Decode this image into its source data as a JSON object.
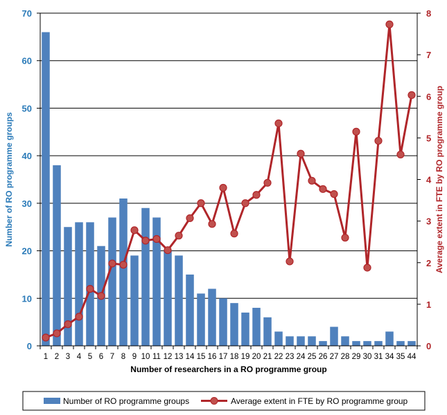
{
  "chart_data": {
    "type": "bar",
    "categories": [
      "1",
      "2",
      "3",
      "4",
      "5",
      "6",
      "7",
      "8",
      "9",
      "10",
      "11",
      "12",
      "13",
      "14",
      "15",
      "16",
      "17",
      "18",
      "19",
      "20",
      "21",
      "22",
      "23",
      "24",
      "25",
      "26",
      "27",
      "28",
      "29",
      "30",
      "31",
      "34",
      "35",
      "44"
    ],
    "series": [
      {
        "name": "Number of RO programme groups",
        "type": "bar",
        "axis": "left",
        "color": "#4f81bd",
        "values": [
          66,
          38,
          25,
          26,
          26,
          21,
          27,
          31,
          19,
          29,
          27,
          20,
          19,
          15,
          11,
          12,
          10,
          9,
          7,
          8,
          6,
          3,
          2,
          2,
          2,
          1,
          4,
          2,
          1,
          1,
          1,
          3,
          1,
          1
        ]
      },
      {
        "name": "Average extent in FTE by RO programme group",
        "type": "line",
        "axis": "right",
        "color": "#c0504d",
        "line_color": "#b0262a",
        "values": [
          0.2,
          0.3,
          0.52,
          0.7,
          1.37,
          1.2,
          1.98,
          1.95,
          2.78,
          2.53,
          2.57,
          2.3,
          2.65,
          3.07,
          3.43,
          2.93,
          3.8,
          2.7,
          3.43,
          3.63,
          3.92,
          5.35,
          2.03,
          4.62,
          3.97,
          3.77,
          3.65,
          2.6,
          5.15,
          1.88,
          4.93,
          7.73,
          4.6,
          6.03
        ]
      }
    ],
    "xlabel": "Number of researchers in a RO programme group",
    "ylabel": "Number of RO programme groups",
    "y2label": "Average extent in FTE by RO programme group",
    "ylim": [
      0,
      70
    ],
    "y2lim": [
      0,
      8
    ],
    "yticks": [
      "0",
      "10",
      "20",
      "30",
      "40",
      "50",
      "60",
      "70"
    ],
    "y2ticks": [
      "0",
      "1",
      "2",
      "3",
      "4",
      "5",
      "6",
      "7",
      "8"
    ],
    "grid": true,
    "legend_position": "bottom"
  }
}
